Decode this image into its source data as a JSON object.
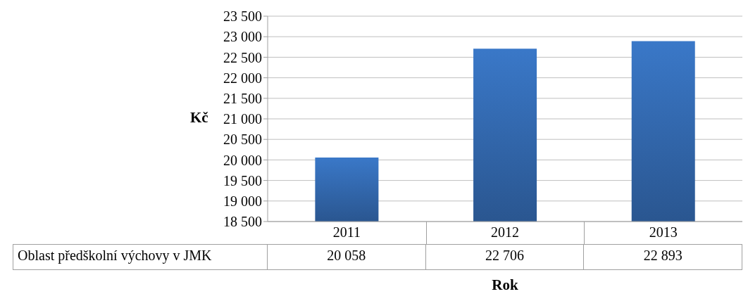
{
  "chart_data": {
    "type": "bar",
    "xlabel": "Rok",
    "ylabel": "Kč",
    "categories": [
      "2011",
      "2012",
      "2013"
    ],
    "series": [
      {
        "name": "Oblast předškolní výchovy v JMK",
        "color": "#3a78c8",
        "values": [
          20058,
          22706,
          22893
        ]
      }
    ],
    "ylim": [
      18500,
      23500
    ],
    "yticks": [
      18500,
      19000,
      19500,
      20000,
      20500,
      21000,
      21500,
      22000,
      22500,
      23000,
      23500
    ],
    "grid": "y",
    "data_labels": true
  }
}
